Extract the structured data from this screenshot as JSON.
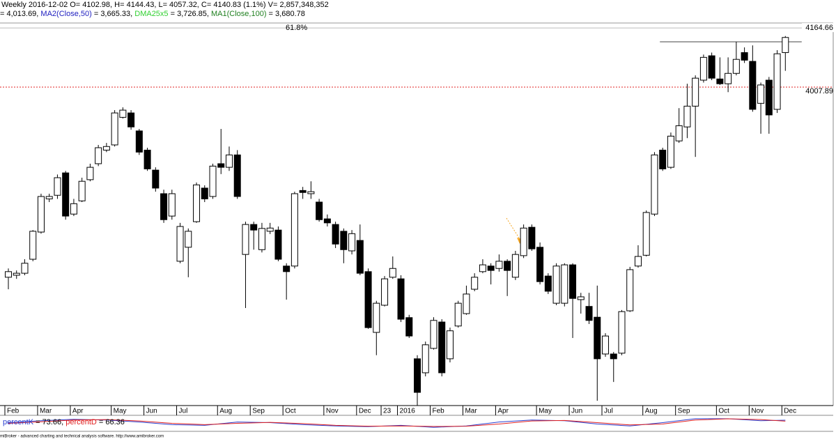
{
  "chart_data": {
    "type": "candlestick",
    "header": [
      {
        "text": "Weekly 2016-12-02 O= 4102.98, H= 4144.43, L= 4057.32, C= 4140.83 (1.1%) V= 2,857,348,352",
        "color": "#000000"
      }
    ],
    "indicators": [
      {
        "text": "= 4,013.69, ",
        "color": "#000000"
      },
      {
        "text": "MA2(Close,50)",
        "color": "#2020c0"
      },
      {
        "text": " = 3,665.33, ",
        "color": "#000000"
      },
      {
        "text": "DMA25x5",
        "color": "#30d030"
      },
      {
        "text": " = 3,726.85, ",
        "color": "#000000"
      },
      {
        "text": "MA1(Close,100)",
        "color": "#208020"
      },
      {
        "text": " = 3,680.78",
        "color": "#000000"
      }
    ],
    "categories": [
      "Feb",
      null,
      null,
      null,
      "Mar",
      null,
      null,
      null,
      "Apr",
      null,
      null,
      null,
      null,
      "May",
      null,
      null,
      null,
      "Jun",
      null,
      null,
      null,
      "Jul",
      null,
      null,
      null,
      null,
      "Aug",
      null,
      null,
      null,
      "Sep",
      null,
      null,
      null,
      "Oct",
      null,
      null,
      null,
      null,
      "Nov",
      null,
      null,
      null,
      "Dec",
      null,
      null,
      "23",
      null,
      "2016",
      null,
      null,
      null,
      "Feb",
      null,
      null,
      null,
      "Mar",
      null,
      null,
      null,
      "Apr",
      null,
      null,
      null,
      null,
      "May",
      null,
      null,
      null,
      "Jun",
      null,
      null,
      null,
      "Jul",
      null,
      null,
      null,
      null,
      "Aug",
      null,
      null,
      null,
      "Sep",
      null,
      null,
      null,
      null,
      "Oct",
      null,
      null,
      null,
      "Nov",
      null,
      null,
      null,
      "Dec"
    ],
    "open": [
      3541,
      3546,
      3551,
      3586,
      3654,
      3737,
      3746,
      3802,
      3699,
      3732,
      3785,
      3825,
      3859,
      3872,
      3941,
      3952,
      3907,
      3859,
      3809,
      3750,
      3694,
      3581,
      3616,
      3680,
      3764,
      3743,
      3825,
      3816,
      3847,
      3598,
      3673,
      3610,
      3656,
      3659,
      3569,
      3569,
      3758,
      3750,
      3729,
      3687,
      3673,
      3656,
      3607,
      3633,
      3555,
      3403,
      3471,
      3541,
      3537,
      3440,
      3337,
      3302,
      3363,
      3429,
      3337,
      3419,
      3450,
      3511,
      3555,
      3569,
      3563,
      3581,
      3541,
      3595,
      3666,
      3616,
      3544,
      3476,
      3476,
      3572,
      3485,
      3468,
      3441,
      3349,
      3349,
      3351,
      3457,
      3569,
      3596,
      3699,
      3859,
      3816,
      3882,
      3917,
      3969,
      4034,
      4095,
      4037,
      4025,
      4051,
      4103,
      4081,
      3976,
      4034,
      3961,
      4102.98
    ],
    "high": [
      3563,
      3558,
      3586,
      3659,
      3750,
      3750,
      3798,
      3807,
      3737,
      3790,
      3825,
      3872,
      3877,
      3959,
      3966,
      3959,
      3912,
      3865,
      3816,
      3760,
      3760,
      3677,
      3663,
      3778,
      3771,
      3825,
      3912,
      3868,
      3859,
      3680,
      3680,
      3677,
      3677,
      3668,
      3576,
      3755,
      3767,
      3781,
      3737,
      3698,
      3680,
      3663,
      3659,
      3673,
      3563,
      3482,
      3544,
      3593,
      3546,
      3447,
      3346,
      3380,
      3441,
      3436,
      3415,
      3482,
      3520,
      3551,
      3586,
      3576,
      3598,
      3586,
      3607,
      3673,
      3673,
      3628,
      3551,
      3576,
      3576,
      3576,
      3502,
      3502,
      3520,
      3401,
      3354,
      3459,
      3567,
      3621,
      3708,
      3854,
      3865,
      3903,
      3964,
      4025,
      4046,
      4098,
      4103,
      4091,
      4091,
      4130,
      4116,
      4121,
      4028,
      4042,
      4109,
      4144.43
    ],
    "low": [
      3511,
      3537,
      3546,
      3581,
      3650,
      3729,
      3737,
      3685,
      3694,
      3729,
      3781,
      3819,
      3854,
      3868,
      3938,
      3910,
      3847,
      3807,
      3755,
      3677,
      3685,
      3576,
      3541,
      3677,
      3729,
      3737,
      3799,
      3807,
      3737,
      3464,
      3610,
      3603,
      3649,
      3581,
      3485,
      3563,
      3737,
      3737,
      3680,
      3668,
      3614,
      3576,
      3598,
      3546,
      3412,
      3346,
      3468,
      3537,
      3429,
      3389,
      3220,
      3293,
      3360,
      3293,
      3328,
      3415,
      3447,
      3506,
      3551,
      3523,
      3555,
      3494,
      3534,
      3589,
      3607,
      3523,
      3499,
      3471,
      3468,
      3389,
      3450,
      3424,
      3232,
      3342,
      3279,
      3346,
      3454,
      3565,
      3593,
      3694,
      3807,
      3812,
      3877,
      3889,
      3842,
      4028,
      4034,
      4022,
      4004,
      4046,
      4077,
      3955,
      3900,
      3900,
      3952,
      4057.32
    ],
    "close": [
      3555,
      3551,
      3576,
      3656,
      3743,
      3743,
      3790,
      3694,
      3725,
      3781,
      3816,
      3865,
      3868,
      3952,
      3959,
      3917,
      3854,
      3812,
      3764,
      3685,
      3750,
      3668,
      3656,
      3772,
      3737,
      3819,
      3816,
      3847,
      3743,
      3673,
      3659,
      3663,
      3664,
      3586,
      3555,
      3750,
      3753,
      3755,
      3685,
      3677,
      3624,
      3610,
      3650,
      3551,
      3415,
      3476,
      3537,
      3563,
      3436,
      3394,
      3253,
      3372,
      3433,
      3302,
      3407,
      3476,
      3499,
      3541,
      3572,
      3558,
      3581,
      3558,
      3598,
      3664,
      3612,
      3530,
      3506,
      3569,
      3572,
      3488,
      3492,
      3433,
      3337,
      3394,
      3337,
      3455,
      3560,
      3593,
      3703,
      3847,
      3812,
      3894,
      3920,
      3969,
      4039,
      4091,
      4039,
      4025,
      4051,
      4086,
      4084,
      3961,
      4022,
      3947,
      4100,
      4140.83
    ],
    "up_color": "#ffffff",
    "down_color": "#000000",
    "ylim": [
      3220,
      4177
    ],
    "fib": {
      "label": "61.8%",
      "value": 4164.66,
      "color": "#2a3fd0"
    },
    "level": {
      "value": 4007.89,
      "color": "#e02020"
    },
    "trendline": {
      "x": [
        80,
        97
      ],
      "value": 4130
    },
    "oscillator": {
      "x": [
        0,
        4,
        8,
        12,
        16,
        20,
        24,
        28,
        32,
        36,
        40,
        44,
        48,
        52,
        56,
        60,
        64,
        68,
        72,
        76,
        80,
        84,
        88,
        92,
        95
      ],
      "ylim": [
        0,
        100
      ],
      "series": [
        {
          "name": "percentK",
          "color": "#2a3fd0",
          "values": [
            55,
            70,
            80,
            75,
            60,
            40,
            35,
            60,
            55,
            40,
            30,
            25,
            35,
            20,
            30,
            60,
            75,
            70,
            45,
            30,
            55,
            85,
            85,
            70,
            73.66
          ]
        },
        {
          "name": "percentD",
          "color": "#e02020",
          "values": [
            50,
            62,
            75,
            78,
            68,
            50,
            40,
            50,
            57,
            48,
            35,
            28,
            30,
            26,
            28,
            45,
            68,
            72,
            55,
            38,
            45,
            75,
            84,
            78,
            66.36
          ]
        }
      ],
      "legend": [
        {
          "text": "percentK",
          "color": "#2a3fd0"
        },
        {
          "text": " = 73.66, ",
          "color": "#000000"
        },
        {
          "text": "percentD",
          "color": "#e02020"
        },
        {
          "text": " = 66.36",
          "color": "#000000"
        }
      ]
    },
    "footer": "miBroker - advanced charting and technical analysis software. http://www.amibroker.com"
  }
}
